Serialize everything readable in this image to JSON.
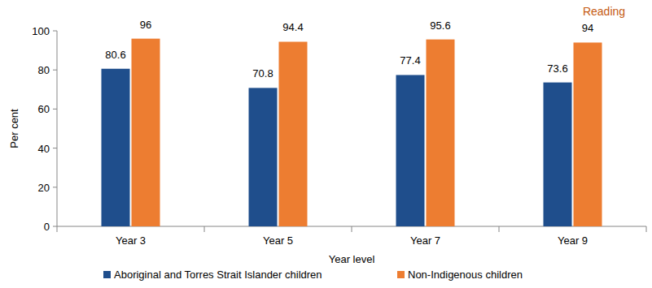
{
  "chart_data": {
    "type": "bar",
    "title": "Reading",
    "x_label": "Year level",
    "y_label": "Per cent",
    "categories": [
      "Year 3",
      "Year 5",
      "Year 7",
      "Year 9"
    ],
    "series": [
      {
        "name": "Aboriginal and Torres Strait Islander children",
        "color": "#1F4E8C",
        "values": [
          80.6,
          70.8,
          77.4,
          73.6
        ]
      },
      {
        "name": "Non-Indigenous children",
        "color": "#ED7D31",
        "values": [
          96,
          94.4,
          95.6,
          94
        ]
      }
    ],
    "ylim": [
      0,
      100
    ],
    "yticks": [
      0,
      20,
      40,
      60,
      80,
      100
    ],
    "grid": false,
    "data_labels": true,
    "legend": "bottom"
  }
}
